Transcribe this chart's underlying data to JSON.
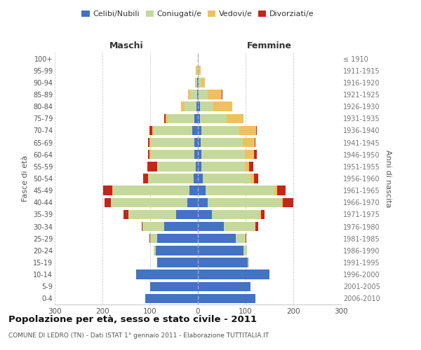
{
  "age_groups": [
    "0-4",
    "5-9",
    "10-14",
    "15-19",
    "20-24",
    "25-29",
    "30-34",
    "35-39",
    "40-44",
    "45-49",
    "50-54",
    "55-59",
    "60-64",
    "65-69",
    "70-74",
    "75-79",
    "80-84",
    "85-89",
    "90-94",
    "95-99",
    "100+"
  ],
  "birth_years": [
    "2006-2010",
    "2001-2005",
    "1996-2000",
    "1991-1995",
    "1986-1990",
    "1981-1985",
    "1976-1980",
    "1971-1975",
    "1966-1970",
    "1961-1965",
    "1956-1960",
    "1951-1955",
    "1946-1950",
    "1941-1945",
    "1936-1940",
    "1931-1935",
    "1926-1930",
    "1921-1925",
    "1916-1920",
    "1911-1915",
    "≤ 1910"
  ],
  "male": {
    "celibi": [
      110,
      100,
      130,
      85,
      88,
      85,
      70,
      45,
      22,
      18,
      9,
      5,
      8,
      8,
      12,
      8,
      3,
      1,
      1,
      0,
      0
    ],
    "coniugati": [
      0,
      0,
      0,
      0,
      5,
      15,
      45,
      100,
      160,
      160,
      95,
      80,
      90,
      90,
      80,
      55,
      25,
      15,
      3,
      2,
      0
    ],
    "vedovi": [
      0,
      0,
      0,
      0,
      0,
      0,
      1,
      1,
      1,
      2,
      1,
      1,
      3,
      3,
      4,
      5,
      8,
      5,
      2,
      2,
      0
    ],
    "divorziati": [
      0,
      0,
      0,
      0,
      0,
      2,
      2,
      10,
      12,
      18,
      10,
      20,
      4,
      4,
      5,
      2,
      0,
      0,
      0,
      0,
      0
    ]
  },
  "female": {
    "nubili": [
      120,
      110,
      150,
      105,
      95,
      80,
      55,
      30,
      20,
      16,
      10,
      8,
      8,
      6,
      7,
      5,
      4,
      2,
      2,
      0,
      0
    ],
    "coniugate": [
      0,
      0,
      0,
      2,
      8,
      20,
      65,
      100,
      155,
      145,
      100,
      90,
      90,
      88,
      80,
      55,
      28,
      18,
      5,
      2,
      0
    ],
    "vedove": [
      0,
      0,
      0,
      0,
      0,
      0,
      1,
      2,
      3,
      5,
      8,
      10,
      20,
      25,
      35,
      35,
      40,
      30,
      8,
      4,
      1
    ],
    "divorziate": [
      0,
      0,
      0,
      0,
      0,
      2,
      5,
      8,
      22,
      18,
      8,
      8,
      5,
      2,
      2,
      0,
      0,
      2,
      0,
      0,
      0
    ]
  },
  "colors": {
    "celibi": "#4472C4",
    "coniugati": "#C5D99C",
    "vedovi": "#F0C060",
    "divorziati": "#C0281C"
  },
  "title": "Popolazione per età, sesso e stato civile - 2011",
  "subtitle": "COMUNE DI LEDRO (TN) - Dati ISTAT 1° gennaio 2011 - Elaborazione TUTTITALIA.IT",
  "xlabel_left": "Maschi",
  "xlabel_right": "Femmine",
  "ylabel_left": "Fasce di età",
  "ylabel_right": "Anni di nascita",
  "xlim": 300,
  "legend_labels": [
    "Celibi/Nubili",
    "Coniugati/e",
    "Vedovi/e",
    "Divorziati/e"
  ],
  "bg_color": "#ffffff",
  "grid_color": "#cccccc"
}
